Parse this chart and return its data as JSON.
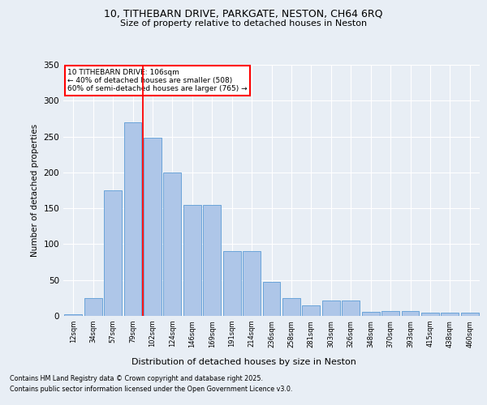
{
  "title_line1": "10, TITHEBARN DRIVE, PARKGATE, NESTON, CH64 6RQ",
  "title_line2": "Size of property relative to detached houses in Neston",
  "xlabel": "Distribution of detached houses by size in Neston",
  "ylabel": "Number of detached properties",
  "categories": [
    "12sqm",
    "34sqm",
    "57sqm",
    "79sqm",
    "102sqm",
    "124sqm",
    "146sqm",
    "169sqm",
    "191sqm",
    "214sqm",
    "236sqm",
    "258sqm",
    "281sqm",
    "303sqm",
    "326sqm",
    "348sqm",
    "370sqm",
    "393sqm",
    "415sqm",
    "438sqm",
    "460sqm"
  ],
  "bar_values": [
    2,
    25,
    175,
    270,
    248,
    200,
    155,
    155,
    90,
    90,
    47,
    25,
    15,
    22,
    22,
    6,
    7,
    7,
    4,
    4,
    5
  ],
  "bar_color": "#aec6e8",
  "bar_edge_color": "#5b9bd5",
  "annotation_line1": "10 TITHEBARN DRIVE: 106sqm",
  "annotation_line2": "← 40% of detached houses are smaller (508)",
  "annotation_line3": "60% of semi-detached houses are larger (765) →",
  "red_line_bin_index": 4,
  "ylim": [
    0,
    350
  ],
  "yticks": [
    0,
    50,
    100,
    150,
    200,
    250,
    300,
    350
  ],
  "footer_line1": "Contains HM Land Registry data © Crown copyright and database right 2025.",
  "footer_line2": "Contains public sector information licensed under the Open Government Licence v3.0.",
  "bg_color": "#e8eef5",
  "plot_bg_color": "#e8eef5"
}
